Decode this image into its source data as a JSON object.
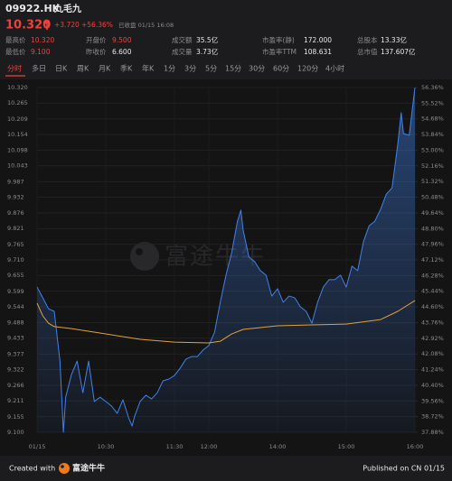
{
  "header": {
    "code": "09922.HK",
    "name": "九毛九",
    "price": "10.320",
    "change": "+3.720",
    "change_pct": "+56.36%",
    "status": "已收盘 01/15 16:08"
  },
  "stats": [
    {
      "label": "最高价",
      "value": "10.320"
    },
    {
      "label": "开盘价",
      "value": "9.500"
    },
    {
      "label": "成交额",
      "value": "35.5亿"
    },
    {
      "label": "市盈率(静)",
      "value": "172.000"
    },
    {
      "label": "总股本",
      "value": "13.33亿"
    },
    {
      "label": "最低价",
      "value": "9.100"
    },
    {
      "label": "昨收价",
      "value": "6.600"
    },
    {
      "label": "成交量",
      "value": "3.73亿"
    },
    {
      "label": "市盈率TTM",
      "value": "108.631"
    },
    {
      "label": "总市值",
      "value": "137.607亿"
    }
  ],
  "tabs": [
    "分时",
    "多日",
    "日K",
    "周K",
    "月K",
    "季K",
    "年K",
    "1分",
    "3分",
    "5分",
    "15分",
    "30分",
    "60分",
    "120分",
    "4小时"
  ],
  "watermark": "富途牛牛",
  "footer": {
    "created": "Created with",
    "brand": "富途牛牛",
    "published": "Published on CN 01/15"
  },
  "chart_data": {
    "type": "line",
    "grid": true,
    "x": [
      0,
      5,
      10,
      15,
      20,
      23,
      25,
      30,
      35,
      40,
      45,
      50,
      55,
      60,
      65,
      70,
      75,
      80,
      83,
      85,
      90,
      95,
      100,
      105,
      110,
      115,
      120,
      125,
      130,
      135,
      140,
      145,
      150,
      155,
      160,
      165,
      170,
      175,
      178,
      180,
      185,
      190,
      195,
      200,
      205,
      210,
      215,
      220,
      225,
      230,
      235,
      240,
      245,
      250,
      255,
      260,
      265,
      270,
      275,
      280,
      285,
      290,
      295,
      300,
      305,
      310,
      315,
      318,
      320,
      325,
      328,
      330
    ],
    "xlim": [
      0,
      330
    ],
    "xticks": [
      {
        "value": 0,
        "label": "01/15"
      },
      {
        "value": 60,
        "label": "10:30"
      },
      {
        "value": 120,
        "label": "11:30"
      },
      {
        "value": 150,
        "label": "12:00"
      },
      {
        "value": 210,
        "label": "14:00"
      },
      {
        "value": 270,
        "label": "15:00"
      },
      {
        "value": 330,
        "label": "16:00"
      }
    ],
    "ylim": [
      9.1,
      10.32
    ],
    "yticks": [
      {
        "value": 10.32,
        "label": "10.320"
      },
      10.265,
      10.209,
      10.154,
      10.098,
      10.043,
      9.987,
      9.932,
      9.876,
      9.821,
      9.765,
      {
        "value": 9.71,
        "label": "9.710"
      },
      9.655,
      9.599,
      9.544,
      9.488,
      9.433,
      9.377,
      9.322,
      9.266,
      9.211,
      9.155,
      {
        "value": 9.1,
        "label": "9.100"
      }
    ],
    "y2lim": [
      37.88,
      56.36
    ],
    "y2ticks": [
      {
        "value": 56.36,
        "label": "56.36%"
      },
      {
        "value": 55.52,
        "label": "55.52%"
      },
      {
        "value": 54.68,
        "label": "54.68%"
      },
      {
        "value": 53.84,
        "label": "53.84%"
      },
      {
        "value": 53.0,
        "label": "53.00%"
      },
      {
        "value": 52.16,
        "label": "52.16%"
      },
      {
        "value": 51.32,
        "label": "51.32%"
      },
      {
        "value": 50.48,
        "label": "50.48%"
      },
      {
        "value": 49.64,
        "label": "49.64%"
      },
      {
        "value": 48.8,
        "label": "48.80%"
      },
      {
        "value": 47.96,
        "label": "47.96%"
      },
      {
        "value": 47.12,
        "label": "47.12%"
      },
      {
        "value": 46.28,
        "label": "46.28%"
      },
      {
        "value": 45.44,
        "label": "45.44%"
      },
      {
        "value": 44.6,
        "label": "44.60%"
      },
      {
        "value": 43.76,
        "label": "43.76%"
      },
      {
        "value": 42.92,
        "label": "42.92%"
      },
      {
        "value": 42.08,
        "label": "42.08%"
      },
      {
        "value": 41.24,
        "label": "41.24%"
      },
      {
        "value": 40.4,
        "label": "40.40%"
      },
      {
        "value": 39.56,
        "label": "39.56%"
      },
      {
        "value": 38.72,
        "label": "38.72%"
      },
      {
        "value": 37.88,
        "label": "37.88%"
      }
    ],
    "series": [
      {
        "color": "#3f82ec",
        "area": true,
        "values": [
          9.614,
          9.576,
          9.537,
          9.528,
          9.352,
          9.1,
          9.224,
          9.304,
          9.352,
          9.24,
          9.352,
          9.209,
          9.224,
          9.209,
          9.193,
          9.167,
          9.215,
          9.151,
          9.122,
          9.154,
          9.209,
          9.231,
          9.218,
          9.24,
          9.282,
          9.288,
          9.301,
          9.327,
          9.359,
          9.368,
          9.368,
          9.391,
          9.407,
          9.454,
          9.56,
          9.656,
          9.736,
          9.847,
          9.886,
          9.815,
          9.72,
          9.704,
          9.672,
          9.656,
          9.582,
          9.608,
          9.56,
          9.582,
          9.576,
          9.544,
          9.528,
          9.486,
          9.56,
          9.614,
          9.64,
          9.64,
          9.656,
          9.614,
          9.688,
          9.672,
          9.774,
          9.831,
          9.847,
          9.889,
          9.943,
          9.965,
          10.119,
          10.231,
          10.157,
          10.151,
          10.253,
          10.32
        ]
      },
      {
        "color": "#e3a13a",
        "x": [
          0,
          5,
          10,
          15,
          30,
          60,
          90,
          120,
          150,
          160,
          170,
          180,
          210,
          240,
          270,
          300,
          315,
          330
        ],
        "values": [
          9.557,
          9.512,
          9.486,
          9.474,
          9.467,
          9.448,
          9.429,
          9.419,
          9.416,
          9.422,
          9.448,
          9.464,
          9.477,
          9.48,
          9.483,
          9.499,
          9.528,
          9.566
        ]
      }
    ]
  }
}
